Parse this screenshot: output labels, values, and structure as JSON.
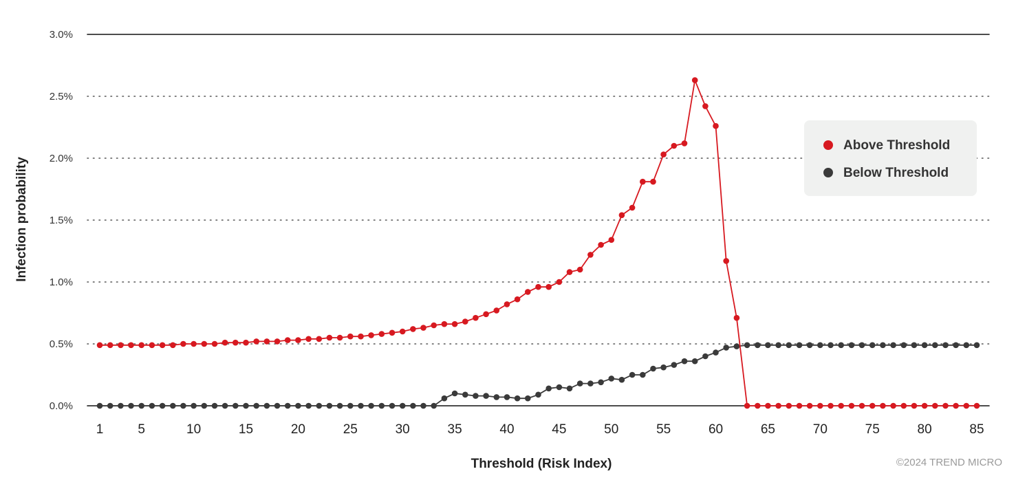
{
  "chart_data": {
    "type": "line",
    "xlabel": "Threshold (Risk Index)",
    "ylabel": "Infection probability",
    "xlim": [
      1,
      85
    ],
    "ylim": [
      0,
      3.0
    ],
    "x_ticks": [
      1,
      5,
      10,
      15,
      20,
      25,
      30,
      35,
      40,
      45,
      50,
      55,
      60,
      65,
      70,
      75,
      80,
      85
    ],
    "y_ticks": [
      {
        "value": 0.0,
        "label": "0.0%"
      },
      {
        "value": 0.5,
        "label": "0.5%"
      },
      {
        "value": 1.0,
        "label": "1.0%"
      },
      {
        "value": 1.5,
        "label": "1.5%"
      },
      {
        "value": 2.0,
        "label": "2.0%"
      },
      {
        "value": 2.5,
        "label": "2.5%"
      },
      {
        "value": 3.0,
        "label": "3.0%"
      }
    ],
    "grid": "horizontal-dotted",
    "legend_position": "right",
    "series": [
      {
        "name": "Above Threshold",
        "color": "#d71920",
        "x": [
          1,
          2,
          3,
          4,
          5,
          6,
          7,
          8,
          9,
          10,
          11,
          12,
          13,
          14,
          15,
          16,
          17,
          18,
          19,
          20,
          21,
          22,
          23,
          24,
          25,
          26,
          27,
          28,
          29,
          30,
          31,
          32,
          33,
          34,
          35,
          36,
          37,
          38,
          39,
          40,
          41,
          42,
          43,
          44,
          45,
          46,
          47,
          48,
          49,
          50,
          51,
          52,
          53,
          54,
          55,
          56,
          57,
          58,
          59,
          60,
          61,
          62,
          63,
          64,
          65,
          66,
          67,
          68,
          69,
          70,
          71,
          72,
          73,
          74,
          75,
          76,
          77,
          78,
          79,
          80,
          81,
          82,
          83,
          84,
          85
        ],
        "values": [
          0.49,
          0.49,
          0.49,
          0.49,
          0.49,
          0.49,
          0.49,
          0.49,
          0.5,
          0.5,
          0.5,
          0.5,
          0.51,
          0.51,
          0.51,
          0.52,
          0.52,
          0.52,
          0.53,
          0.53,
          0.54,
          0.54,
          0.55,
          0.55,
          0.56,
          0.56,
          0.57,
          0.58,
          0.59,
          0.6,
          0.62,
          0.63,
          0.65,
          0.66,
          0.66,
          0.68,
          0.71,
          0.74,
          0.77,
          0.82,
          0.86,
          0.92,
          0.96,
          0.96,
          1.0,
          1.08,
          1.1,
          1.22,
          1.3,
          1.34,
          1.54,
          1.6,
          1.81,
          1.81,
          2.03,
          2.1,
          2.12,
          2.63,
          2.42,
          2.26,
          1.17,
          0.71,
          0.0,
          0.0,
          0.0,
          0.0,
          0.0,
          0.0,
          0.0,
          0.0,
          0.0,
          0.0,
          0.0,
          0.0,
          0.0,
          0.0,
          0.0,
          0.0,
          0.0,
          0.0,
          0.0,
          0.0,
          0.0,
          0.0,
          0.0
        ]
      },
      {
        "name": "Below Threshold",
        "color": "#3a3a3a",
        "x": [
          1,
          2,
          3,
          4,
          5,
          6,
          7,
          8,
          9,
          10,
          11,
          12,
          13,
          14,
          15,
          16,
          17,
          18,
          19,
          20,
          21,
          22,
          23,
          24,
          25,
          26,
          27,
          28,
          29,
          30,
          31,
          32,
          33,
          34,
          35,
          36,
          37,
          38,
          39,
          40,
          41,
          42,
          43,
          44,
          45,
          46,
          47,
          48,
          49,
          50,
          51,
          52,
          53,
          54,
          55,
          56,
          57,
          58,
          59,
          60,
          61,
          62,
          63,
          64,
          65,
          66,
          67,
          68,
          69,
          70,
          71,
          72,
          73,
          74,
          75,
          76,
          77,
          78,
          79,
          80,
          81,
          82,
          83,
          84,
          85
        ],
        "values": [
          0.0,
          0.0,
          0.0,
          0.0,
          0.0,
          0.0,
          0.0,
          0.0,
          0.0,
          0.0,
          0.0,
          0.0,
          0.0,
          0.0,
          0.0,
          0.0,
          0.0,
          0.0,
          0.0,
          0.0,
          0.0,
          0.0,
          0.0,
          0.0,
          0.0,
          0.0,
          0.0,
          0.0,
          0.0,
          0.0,
          0.0,
          0.0,
          0.0,
          0.06,
          0.1,
          0.09,
          0.08,
          0.08,
          0.07,
          0.07,
          0.06,
          0.06,
          0.09,
          0.14,
          0.15,
          0.14,
          0.18,
          0.18,
          0.19,
          0.22,
          0.21,
          0.25,
          0.25,
          0.3,
          0.31,
          0.33,
          0.36,
          0.36,
          0.4,
          0.43,
          0.47,
          0.48,
          0.49,
          0.49,
          0.49,
          0.49,
          0.49,
          0.49,
          0.49,
          0.49,
          0.49,
          0.49,
          0.49,
          0.49,
          0.49,
          0.49,
          0.49,
          0.49,
          0.49,
          0.49,
          0.49,
          0.49,
          0.49,
          0.49,
          0.49
        ]
      }
    ]
  },
  "copyright": "©2024 TREND MICRO"
}
